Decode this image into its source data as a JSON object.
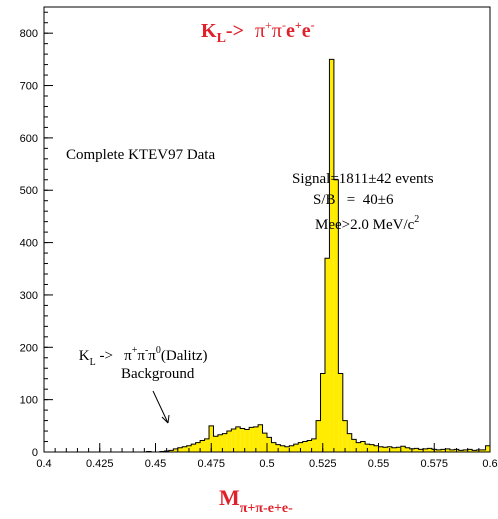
{
  "chart_data": {
    "type": "bar",
    "style": "histogram",
    "title": "K_L-> π+π-e+e-",
    "xlabel": "M_π+π-e+e-",
    "ylabel": "",
    "xlim": [
      0.4,
      0.6
    ],
    "ylim": [
      0,
      850
    ],
    "xticks": [
      "0.4",
      "0.425",
      "0.45",
      "0.475",
      "0.5",
      "0.525",
      "0.55",
      "0.575",
      "0.6"
    ],
    "yticks": [
      "0",
      "100",
      "200",
      "300",
      "400",
      "500",
      "600",
      "700",
      "800"
    ],
    "fill_color": "#ffec00",
    "bin_width": 0.002,
    "bin_start": 0.4,
    "values": [
      0,
      0,
      0,
      0,
      0,
      0,
      0,
      0,
      0,
      0,
      0,
      0,
      0,
      0,
      0,
      0,
      0,
      0,
      0,
      0,
      0,
      0,
      0,
      1,
      0,
      0,
      1,
      2,
      3,
      6,
      8,
      10,
      12,
      15,
      18,
      22,
      25,
      50,
      30,
      33,
      35,
      40,
      44,
      48,
      45,
      43,
      47,
      48,
      52,
      36,
      28,
      18,
      14,
      12,
      10,
      12,
      15,
      18,
      20,
      22,
      25,
      60,
      150,
      370,
      750,
      520,
      150,
      60,
      35,
      24,
      18,
      20,
      15,
      14,
      12,
      10,
      9,
      10,
      8,
      9,
      11,
      8,
      6,
      7,
      5,
      6,
      7,
      5,
      4,
      5,
      6,
      4,
      5,
      3,
      4,
      5,
      3,
      4,
      4,
      12
    ],
    "annotations": {
      "dataset": "Complete KTEV97 Data",
      "signal": "Signal=1811±42 events",
      "sb": "S/B   =  40±6",
      "mee": "Mee>2.0 MeV/c",
      "mee_sup": "2",
      "bg_line1_a": "K",
      "bg_line1_sub": "L",
      "bg_line1_b": " ->   π",
      "bg_line1_sup1": "+",
      "bg_line1_c": "π",
      "bg_line1_sup2": "-",
      "bg_line1_d": "π",
      "bg_line1_sup3": "0",
      "bg_line1_e": "(Dalitz)",
      "bg_line2": "Background"
    },
    "title_parts": {
      "k": "K",
      "sub": "L",
      "arrow": "-> ",
      "p1": "π",
      "s1": "+",
      "p2": "π",
      "s2": "-",
      "e1": "e",
      "s3": "+",
      "e2": "e",
      "s4": "-"
    },
    "xlabel_parts": {
      "m": "M",
      "sub": "π+π-e+e-"
    }
  }
}
